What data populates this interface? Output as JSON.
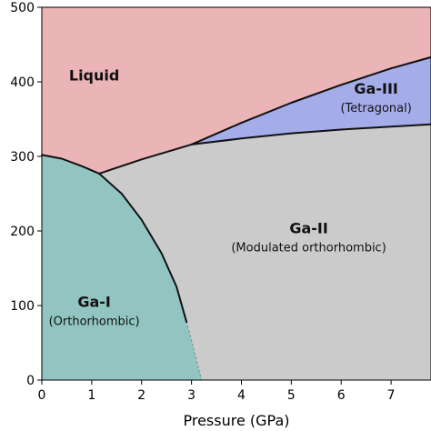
{
  "chart_data": {
    "type": "area",
    "title": "",
    "xlabel": "Pressure (GPa)",
    "ylabel": "",
    "xlim": [
      0,
      7.8
    ],
    "ylim": [
      0,
      500
    ],
    "xticks": [
      0,
      1,
      2,
      3,
      4,
      5,
      6,
      7
    ],
    "yticks": [
      0,
      100,
      200,
      300,
      400,
      500
    ],
    "grid": false,
    "colors": {
      "liquid": "#ebb4b6",
      "ga1": "#92c5c1",
      "ga2": "#cbcbcb",
      "ga3": "#a5acea",
      "boundary": "#111111"
    },
    "boundaries": [
      {
        "id": "liquid-gaI",
        "dashed": false,
        "points": [
          [
            0,
            302
          ],
          [
            0.4,
            297
          ],
          [
            0.8,
            287
          ],
          [
            1.15,
            277
          ]
        ]
      },
      {
        "id": "liquid-gaII",
        "dashed": false,
        "points": [
          [
            1.15,
            277
          ],
          [
            2.0,
            296
          ],
          [
            3.0,
            316
          ]
        ]
      },
      {
        "id": "liquid-gaIII",
        "dashed": false,
        "points": [
          [
            3.0,
            316
          ],
          [
            4.0,
            345
          ],
          [
            5.0,
            372
          ],
          [
            6.0,
            396
          ],
          [
            7.0,
            418
          ],
          [
            7.8,
            433
          ]
        ]
      },
      {
        "id": "gaIII-gaII",
        "dashed": false,
        "points": [
          [
            3.0,
            316
          ],
          [
            4.0,
            324
          ],
          [
            5.0,
            331
          ],
          [
            6.0,
            336
          ],
          [
            7.0,
            340
          ],
          [
            7.8,
            343
          ]
        ]
      },
      {
        "id": "gaI-gaII",
        "dashed": false,
        "points": [
          [
            1.15,
            277
          ],
          [
            1.6,
            250
          ],
          [
            2.0,
            215
          ],
          [
            2.4,
            170
          ],
          [
            2.7,
            125
          ],
          [
            2.9,
            78
          ]
        ]
      },
      {
        "id": "gaI-gaII-extrapolated",
        "dashed": true,
        "points": [
          [
            2.9,
            78
          ],
          [
            3.05,
            40
          ],
          [
            3.2,
            0
          ]
        ]
      }
    ],
    "phases": [
      {
        "id": "liquid",
        "name": "Liquid",
        "subtitle": "",
        "label_x": 1.05,
        "label_y": 402
      },
      {
        "id": "ga1",
        "name": "Ga-I",
        "subtitle": "(Orthorhombic)",
        "label_x": 1.05,
        "label_y": 98
      },
      {
        "id": "ga2",
        "name": "Ga-II",
        "subtitle": "(Modulated orthorhombic)",
        "label_x": 5.35,
        "label_y": 197
      },
      {
        "id": "ga3",
        "name": "Ga-III",
        "subtitle": "(Tetragonal)",
        "label_x": 6.7,
        "label_y": 384
      }
    ]
  }
}
